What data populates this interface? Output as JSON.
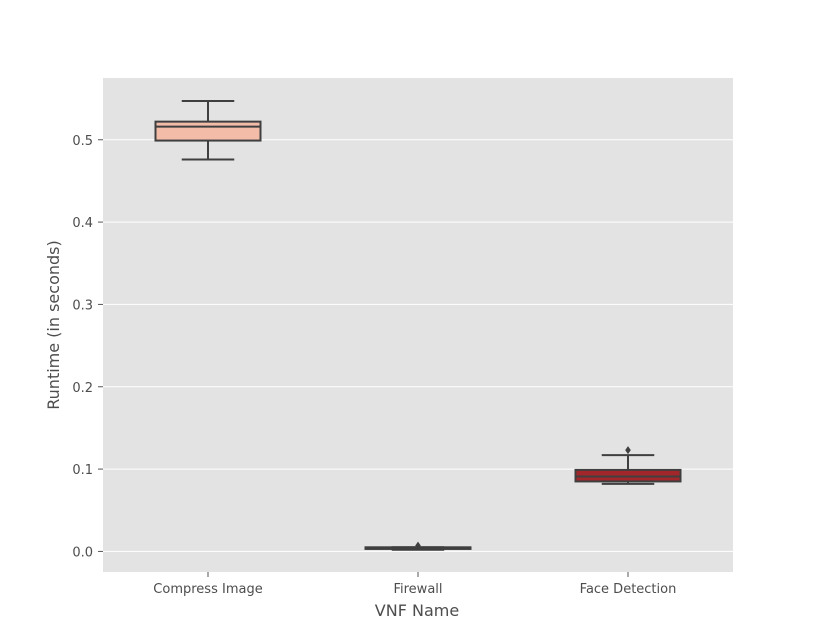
{
  "chart_data": {
    "type": "box",
    "title": "",
    "xlabel": "VNF Name",
    "ylabel": "Runtime (in seconds)",
    "ylim": [
      -0.025,
      0.575
    ],
    "yticks": [
      "0.0",
      "0.1",
      "0.2",
      "0.3",
      "0.4",
      "0.5"
    ],
    "grid": true,
    "categories": [
      "Compress Image",
      "Firewall",
      "Face Detection"
    ],
    "boxes": [
      {
        "category": "Compress Image",
        "whisker_low": 0.476,
        "q1": 0.499,
        "median": 0.516,
        "q3": 0.522,
        "whisker_high": 0.547,
        "outliers": [],
        "color": "#f2bca9"
      },
      {
        "category": "Firewall",
        "whisker_low": 0.002,
        "q1": 0.003,
        "median": 0.004,
        "q3": 0.005,
        "whisker_high": 0.005,
        "outliers": [
          0.007
        ],
        "color": "#f7ddd3"
      },
      {
        "category": "Face Detection",
        "whisker_low": 0.082,
        "q1": 0.085,
        "median": 0.091,
        "q3": 0.099,
        "whisker_high": 0.117,
        "outliers": [
          0.123
        ],
        "color": "#a3272a"
      }
    ],
    "colors": {
      "plot_background": "#e3e3e3",
      "grid": "#ffffff",
      "box_edge": "#3f3f3f",
      "median_line": "#3f3f3f"
    }
  }
}
